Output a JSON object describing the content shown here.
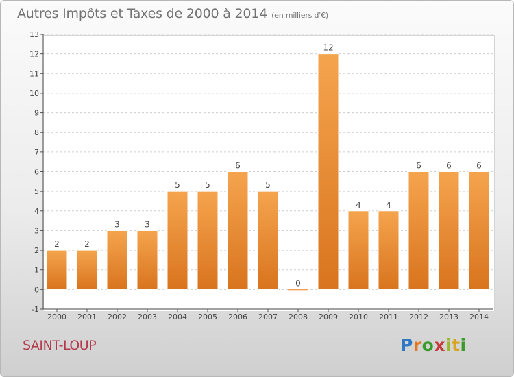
{
  "header": {
    "title": "Autres Impôts et Taxes de 2000 à 2014",
    "unit": "(en milliers d'€)"
  },
  "footer": {
    "commune": "SAINT-LOUP",
    "logo": "Proxiti"
  },
  "colors": {
    "bar_top": "#f5a44e",
    "bar_bottom": "#d9741e",
    "axis_text": "#333333",
    "grid": "#cccccc",
    "commune": "#b23a4c"
  },
  "chart_data": {
    "type": "bar",
    "title": "Autres Impôts et Taxes de 2000 à 2014",
    "subtitle": "(en milliers d'€)",
    "xlabel": "",
    "ylabel": "",
    "categories": [
      "2000",
      "2001",
      "2002",
      "2003",
      "2004",
      "2005",
      "2006",
      "2007",
      "2008",
      "2009",
      "2010",
      "2011",
      "2012",
      "2013",
      "2014"
    ],
    "values": [
      2,
      2,
      3,
      3,
      5,
      5,
      6,
      5,
      0,
      12,
      4,
      4,
      6,
      6,
      6
    ],
    "ylim": [
      -1,
      13
    ],
    "yticks": [
      -1,
      0,
      1,
      2,
      3,
      4,
      5,
      6,
      7,
      8,
      9,
      10,
      11,
      12,
      13
    ],
    "grid": "horizontal dashed",
    "legend": "none"
  }
}
